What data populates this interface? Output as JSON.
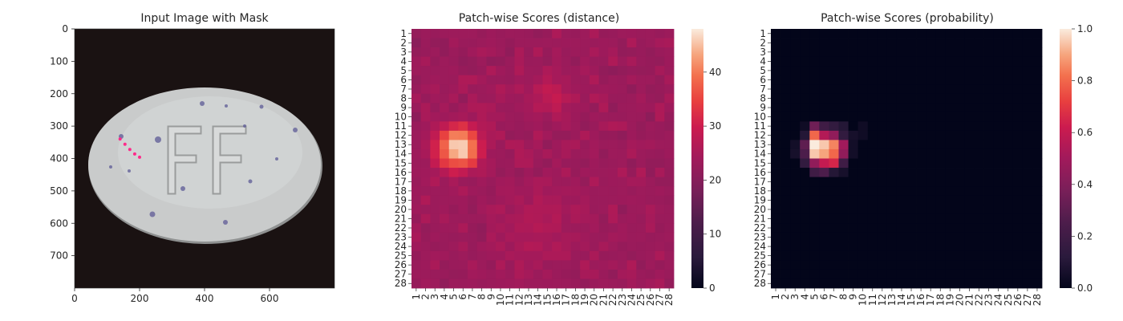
{
  "chart_data": [
    {
      "type": "image",
      "title": "Input Image with Mask",
      "x_ticks": [
        0,
        200,
        400,
        600
      ],
      "y_ticks": [
        0,
        100,
        200,
        300,
        400,
        500,
        600,
        700
      ],
      "xlim": [
        0,
        800
      ],
      "ylim": [
        0,
        800
      ],
      "content": {
        "background_color": "#1a1212",
        "object": "white oval pill",
        "pill_color": "#c9cbcb",
        "imprint": "FF",
        "mask_color": "#ff2a8a",
        "mask_points": [
          [
            140,
            340
          ],
          [
            155,
            356
          ],
          [
            170,
            372
          ],
          [
            185,
            386
          ],
          [
            200,
            396
          ]
        ]
      }
    },
    {
      "type": "heatmap",
      "title": "Patch-wise Scores (distance)",
      "rows": 28,
      "cols": 28,
      "tick_labels": [
        "1",
        "2",
        "3",
        "4",
        "5",
        "6",
        "7",
        "8",
        "9",
        "10",
        "11",
        "12",
        "13",
        "14",
        "15",
        "16",
        "17",
        "18",
        "19",
        "20",
        "21",
        "22",
        "23",
        "24",
        "25",
        "26",
        "27",
        "28"
      ],
      "colormap": "rocket",
      "colorbar": {
        "vmin": 0,
        "vmax": 48,
        "ticks": [
          0,
          10,
          20,
          30,
          40
        ]
      },
      "baseline": 22,
      "hotspots": [
        {
          "row": 13.3,
          "col": 5.5,
          "peak": 48,
          "sigma": 1.7
        },
        {
          "row": 7.7,
          "col": 15.5,
          "peak": 29,
          "sigma": 1.6
        },
        {
          "row": 21.5,
          "col": 14,
          "peak": 26,
          "sigma": 3.5
        }
      ]
    },
    {
      "type": "heatmap",
      "title": "Patch-wise Scores (probability)",
      "rows": 28,
      "cols": 28,
      "tick_labels": [
        "1",
        "2",
        "3",
        "4",
        "5",
        "6",
        "7",
        "8",
        "9",
        "10",
        "11",
        "12",
        "13",
        "14",
        "15",
        "16",
        "17",
        "18",
        "19",
        "20",
        "21",
        "22",
        "23",
        "24",
        "25",
        "26",
        "27",
        "28"
      ],
      "colormap": "rocket",
      "colorbar": {
        "vmin": 0.0,
        "vmax": 1.0,
        "ticks": [
          "0.0",
          "0.2",
          "0.4",
          "0.6",
          "0.8",
          "1.0"
        ]
      },
      "cells": [
        {
          "row": 11,
          "col": 5,
          "value": 0.35
        },
        {
          "row": 11,
          "col": 6,
          "value": 0.2
        },
        {
          "row": 11,
          "col": 7,
          "value": 0.15
        },
        {
          "row": 11,
          "col": 8,
          "value": 0.1
        },
        {
          "row": 11,
          "col": 10,
          "value": 0.04
        },
        {
          "row": 11,
          "col": 4,
          "value": 0.04
        },
        {
          "row": 12,
          "col": 4,
          "value": 0.1
        },
        {
          "row": 12,
          "col": 5,
          "value": 0.8
        },
        {
          "row": 12,
          "col": 6,
          "value": 0.55
        },
        {
          "row": 12,
          "col": 7,
          "value": 0.45
        },
        {
          "row": 12,
          "col": 8,
          "value": 0.15
        },
        {
          "row": 12,
          "col": 9,
          "value": 0.06
        },
        {
          "row": 12,
          "col": 10,
          "value": 0.04
        },
        {
          "row": 13,
          "col": 3,
          "value": 0.05
        },
        {
          "row": 13,
          "col": 4,
          "value": 0.3
        },
        {
          "row": 13,
          "col": 5,
          "value": 1.0
        },
        {
          "row": 13,
          "col": 6,
          "value": 0.95
        },
        {
          "row": 13,
          "col": 7,
          "value": 0.85
        },
        {
          "row": 13,
          "col": 8,
          "value": 0.5
        },
        {
          "row": 13,
          "col": 9,
          "value": 0.05
        },
        {
          "row": 14,
          "col": 3,
          "value": 0.06
        },
        {
          "row": 14,
          "col": 4,
          "value": 0.25
        },
        {
          "row": 14,
          "col": 5,
          "value": 0.95
        },
        {
          "row": 14,
          "col": 6,
          "value": 0.9
        },
        {
          "row": 14,
          "col": 7,
          "value": 0.8
        },
        {
          "row": 14,
          "col": 8,
          "value": 0.45
        },
        {
          "row": 14,
          "col": 9,
          "value": 0.05
        },
        {
          "row": 15,
          "col": 4,
          "value": 0.15
        },
        {
          "row": 15,
          "col": 5,
          "value": 0.45
        },
        {
          "row": 15,
          "col": 6,
          "value": 0.6
        },
        {
          "row": 15,
          "col": 7,
          "value": 0.65
        },
        {
          "row": 15,
          "col": 8,
          "value": 0.2
        },
        {
          "row": 16,
          "col": 5,
          "value": 0.2
        },
        {
          "row": 16,
          "col": 6,
          "value": 0.25
        },
        {
          "row": 16,
          "col": 7,
          "value": 0.1
        },
        {
          "row": 16,
          "col": 8,
          "value": 0.06
        }
      ]
    }
  ]
}
